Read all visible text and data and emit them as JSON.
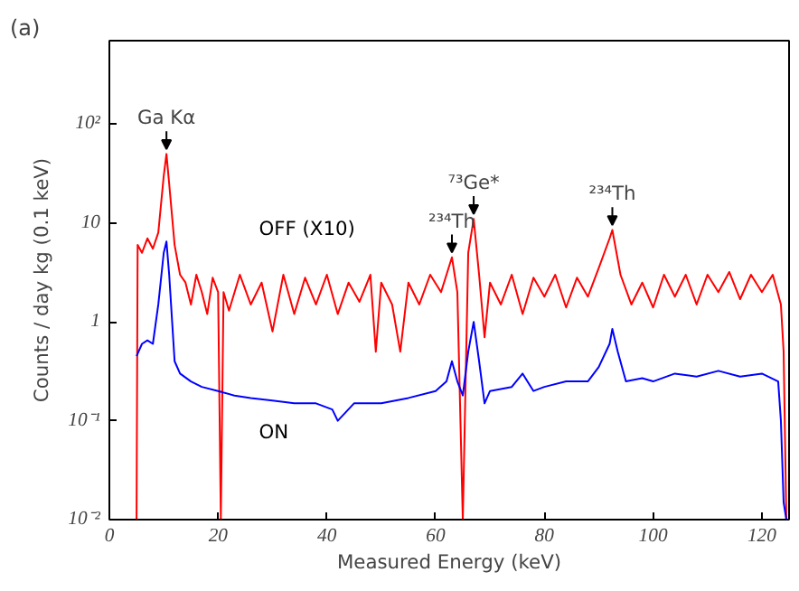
{
  "chart_data": {
    "type": "line",
    "title": "(a)",
    "xlabel": "Measured Energy (keV)",
    "ylabel": "Counts / day kg (0.1 keV)",
    "log": "y",
    "xlim": [
      0,
      125
    ],
    "ylim": [
      0.01,
      700
    ],
    "xticks": [
      0,
      20,
      40,
      60,
      80,
      100,
      120
    ],
    "yticks": [
      {
        "value": 0.01,
        "label": "10⁻²"
      },
      {
        "value": 0.1,
        "label": "10⁻¹"
      },
      1,
      10,
      {
        "value": 100,
        "label": "10²"
      }
    ],
    "grid": false,
    "marker": "none",
    "line_style": "solid",
    "series": [
      {
        "name": "OFF (X10)",
        "color": "#ff0000",
        "x": [
          5,
          5.2,
          6,
          7,
          8,
          9,
          10,
          10.5,
          11,
          12,
          13,
          14,
          15,
          16,
          17,
          18,
          19,
          20,
          20.5,
          21,
          22,
          24,
          26,
          28,
          30,
          32,
          34,
          36,
          38,
          40,
          42,
          44,
          46,
          48,
          49,
          50,
          52,
          53.5,
          55,
          57,
          59,
          61,
          63,
          64,
          65,
          66,
          67,
          68,
          69,
          70,
          72,
          74,
          76,
          78,
          80,
          82,
          84,
          86,
          88,
          90,
          92,
          92.5,
          94,
          96,
          98,
          100,
          102,
          104,
          106,
          108,
          110,
          112,
          114,
          116,
          118,
          120,
          122,
          123.5,
          124,
          124.5
        ],
        "values": [
          0.01,
          6,
          5,
          7,
          5.5,
          8,
          30,
          50,
          25,
          6,
          3,
          2.5,
          1.5,
          3,
          2,
          1.2,
          2.8,
          2,
          0.01,
          2,
          1.3,
          3,
          1.5,
          2.5,
          0.8,
          3,
          1.2,
          2.8,
          1.5,
          3,
          1.2,
          2.5,
          1.6,
          3,
          0.5,
          2.5,
          1.5,
          0.5,
          2.5,
          1.5,
          3,
          2,
          4.5,
          2,
          0.01,
          5,
          11,
          3,
          0.7,
          2.5,
          1.5,
          3,
          1.2,
          2.8,
          1.8,
          3,
          1.4,
          2.8,
          1.8,
          3.5,
          7,
          8.5,
          3,
          1.5,
          2.5,
          1.4,
          3,
          1.8,
          3,
          1.5,
          3,
          2,
          3.2,
          1.7,
          3,
          2,
          3,
          1.5,
          0.5,
          0.01
        ]
      },
      {
        "name": "ON",
        "color": "#0000ff",
        "x": [
          5,
          6,
          7,
          8,
          9,
          10,
          10.5,
          11,
          12,
          13,
          15,
          17,
          20,
          23,
          26,
          30,
          34,
          38,
          41,
          42,
          45,
          50,
          55,
          60,
          62,
          63,
          64,
          65,
          66,
          67,
          68,
          69,
          70,
          74,
          76,
          78,
          80,
          84,
          88,
          90,
          92,
          92.5,
          93.5,
          95,
          98,
          100,
          104,
          108,
          112,
          116,
          120,
          123,
          123.5,
          124,
          124.5
        ],
        "values": [
          0.45,
          0.6,
          0.65,
          0.6,
          1.5,
          5,
          6.5,
          3,
          0.4,
          0.3,
          0.25,
          0.22,
          0.2,
          0.18,
          0.17,
          0.16,
          0.15,
          0.15,
          0.13,
          0.1,
          0.15,
          0.15,
          0.17,
          0.2,
          0.25,
          0.4,
          0.25,
          0.18,
          0.5,
          1.0,
          0.4,
          0.15,
          0.2,
          0.22,
          0.3,
          0.2,
          0.22,
          0.25,
          0.25,
          0.35,
          0.6,
          0.85,
          0.5,
          0.25,
          0.27,
          0.25,
          0.3,
          0.28,
          0.32,
          0.28,
          0.3,
          0.25,
          0.1,
          0.015,
          0.01
        ]
      }
    ],
    "annotations": [
      {
        "text": "Ga Kα",
        "x": 10.5,
        "y": 50
      },
      {
        "text": "⁷³Ge*",
        "x": 67,
        "y": 11
      },
      {
        "text": "²³⁴Th",
        "x": 63,
        "y": 4.5
      },
      {
        "text": "²³⁴Th",
        "x": 92.5,
        "y": 8.5
      }
    ]
  }
}
